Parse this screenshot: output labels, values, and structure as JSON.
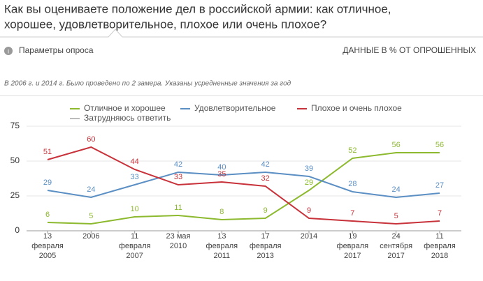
{
  "header": {
    "title_lines": [
      "Как вы оцениваете положение дел в российской армии: как отличное,",
      "хорошее, удовлетворительное, плохое или очень плохое?"
    ],
    "params": "Параметры опроса",
    "units": "ДАННЫЕ В % ОТ ОПРОШЕННЫХ",
    "note": "В 2006 г. и 2014 г. Было проведено по 2 замера. Указаны усредненные значения за год"
  },
  "chart_data": {
    "type": "line",
    "categories": [
      [
        "13",
        "февраля",
        "2005"
      ],
      [
        "2006"
      ],
      [
        "11",
        "февраля",
        "2007"
      ],
      [
        "23 мая",
        "2010"
      ],
      [
        "13",
        "февраля",
        "2011"
      ],
      [
        "17",
        "февраля",
        "2013"
      ],
      [
        "2014"
      ],
      [
        "19",
        "февраля",
        "2017"
      ],
      [
        "24",
        "сентября",
        "2017"
      ],
      [
        "11",
        "февраля",
        "2018"
      ]
    ],
    "series": [
      {
        "name": "Отличное и хорошее",
        "color": "#8cb92e",
        "values": [
          6,
          5,
          10,
          11,
          8,
          9,
          29,
          52,
          56,
          56
        ]
      },
      {
        "name": "Удовлетворительное",
        "color": "#5b8fc4",
        "values": [
          29,
          24,
          33,
          42,
          40,
          42,
          39,
          28,
          24,
          27
        ]
      },
      {
        "name": "Плохое и очень плохое",
        "color": "#c8323a",
        "values": [
          51,
          60,
          44,
          33,
          35,
          32,
          9,
          7,
          5,
          7
        ]
      },
      {
        "name": "Затрудняюсь ответить",
        "color": "#bbbbbb",
        "values": [
          null,
          null,
          null,
          null,
          null,
          null,
          null,
          null,
          null,
          null
        ]
      }
    ],
    "ylim": [
      0,
      75
    ],
    "yticks": [
      0,
      25,
      50,
      75
    ],
    "grid": true
  }
}
